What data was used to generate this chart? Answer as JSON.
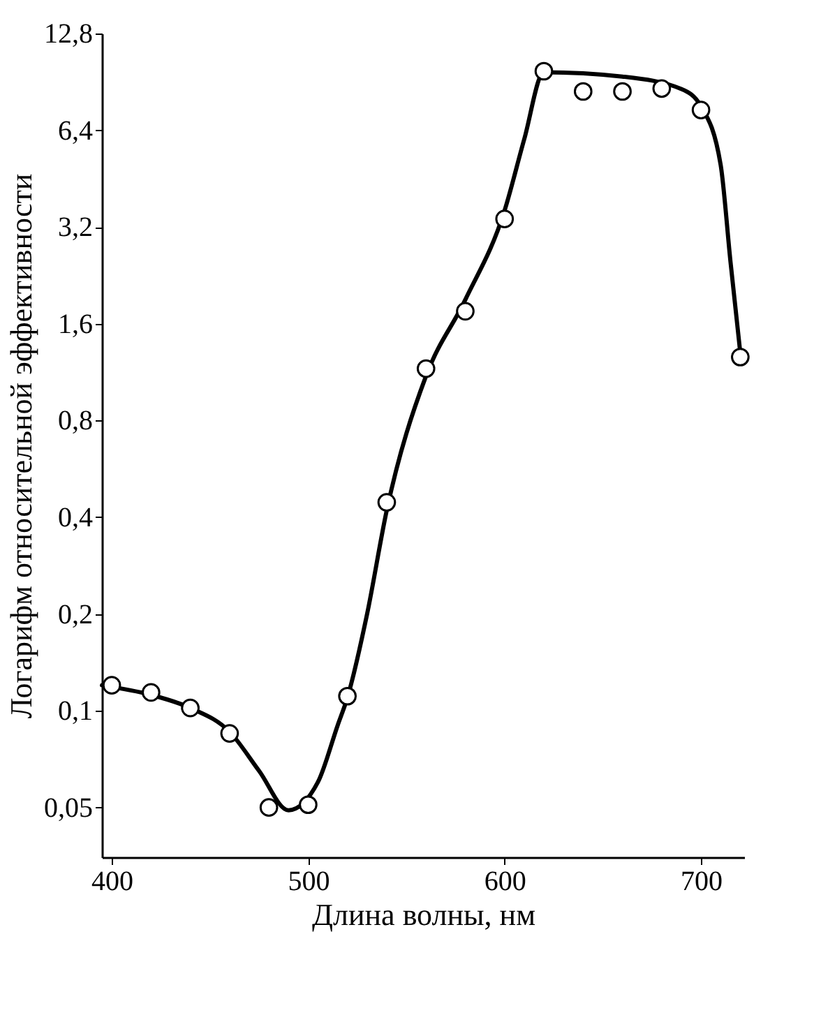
{
  "chart_data": {
    "type": "scatter",
    "xlabel": "Длина волны, нм",
    "ylabel": "Логарифм относительной эффективности",
    "log": "y",
    "grid": false,
    "xlim": [
      395,
      722
    ],
    "xticks": [
      400,
      500,
      600,
      700
    ],
    "ylim": [
      0.035,
      12.8
    ],
    "yticks": [
      {
        "value": 0.05,
        "label": "0,05"
      },
      {
        "value": 0.1,
        "label": "0,1"
      },
      {
        "value": 0.2,
        "label": "0,2"
      },
      {
        "value": 0.4,
        "label": "0,4"
      },
      {
        "value": 0.8,
        "label": "0,8"
      },
      {
        "value": 1.6,
        "label": "1,6"
      },
      {
        "value": 3.2,
        "label": "3,2"
      },
      {
        "value": 6.4,
        "label": "6,4"
      },
      {
        "value": 12.8,
        "label": "12,8"
      }
    ],
    "series": [
      {
        "type": "line",
        "color": "#000000",
        "marker": "none",
        "line_style": "solid",
        "x": [
          395,
          420,
          440,
          460,
          475,
          490,
          505,
          515,
          520,
          530,
          540,
          560,
          580,
          600,
          610,
          620,
          660,
          690,
          700,
          710,
          715,
          720
        ],
        "values": [
          0.12,
          0.112,
          0.102,
          0.086,
          0.065,
          0.049,
          0.06,
          0.09,
          0.11,
          0.2,
          0.42,
          1.1,
          1.9,
          3.6,
          6.0,
          9.7,
          9.4,
          8.6,
          7.6,
          5.0,
          2.5,
          1.3
        ]
      },
      {
        "color": "#000000",
        "marker": "circle",
        "x": [
          400,
          420,
          440,
          460,
          480,
          500,
          520,
          540,
          560,
          580,
          600,
          620,
          640,
          660,
          680,
          700,
          720
        ],
        "values": [
          0.12,
          0.114,
          0.102,
          0.085,
          0.05,
          0.051,
          0.111,
          0.445,
          1.16,
          1.75,
          3.39,
          9.77,
          8.45,
          8.45,
          8.63,
          7.4,
          1.26
        ]
      }
    ]
  }
}
